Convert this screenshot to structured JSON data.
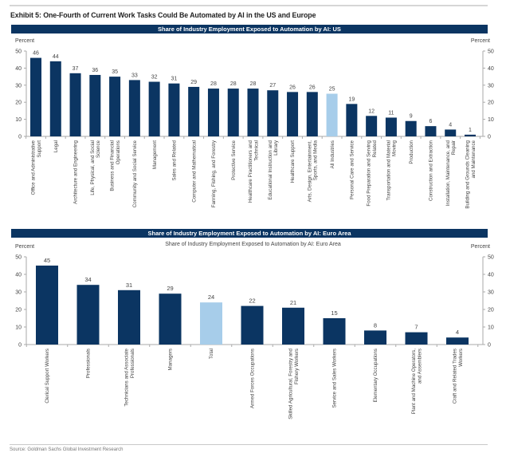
{
  "exhibit_title": "Exhibit 5: One-Fourth of Current Work Tasks Could Be Automated by AI in the US and Europe",
  "source": "Source: Goldman Sachs Global Investment Research",
  "colors": {
    "bar": "#0b3562",
    "highlight": "#a7cdea",
    "banner": "#0b3562",
    "axis": "#aaaaaa"
  },
  "chart_data": [
    {
      "type": "bar",
      "title": "Share of Industry Employment Exposed to Automation by AI: US",
      "ylabel_left": "Percent",
      "ylabel_right": "Percent",
      "ylim": [
        0,
        50
      ],
      "yticks": [
        0,
        10,
        20,
        30,
        40,
        50
      ],
      "grid": false,
      "highlight_category": "All Industries",
      "categories": [
        "Office and Administrative Support",
        "Legal",
        "Architecture and Engineering",
        "Life, Physical, and Social Science",
        "Business and Financial Operations",
        "Community and Social Service",
        "Management",
        "Sales and Related",
        "Computer and Mathematical",
        "Farming, Fishing, and Forestry",
        "Protective Service",
        "Healthcare Practitioners and Technical",
        "Educational Instruction and Library",
        "Healthcare Support",
        "Arts, Design, Entertainment, Sports, and Media",
        "All Industries",
        "Personal Care and Service",
        "Food Preparation and Serving Related",
        "Transportation and Material Moving",
        "Production",
        "Construction and Extraction",
        "Installation, Maintenance, and Repair",
        "Building and Grounds Cleaning and Maintenance"
      ],
      "label_lines": [
        [
          "Office and Administrative",
          "Support"
        ],
        [
          "Legal"
        ],
        [
          "Architecture and Engineering"
        ],
        [
          "Life, Physical, and Social",
          "Science"
        ],
        [
          "Business and Financial",
          "Operations"
        ],
        [
          "Community and Social Service"
        ],
        [
          "Management"
        ],
        [
          "Sales and Related"
        ],
        [
          "Computer and Mathematical"
        ],
        [
          "Farming, Fishing, and Forestry"
        ],
        [
          "Protective Service"
        ],
        [
          "Healthcare Practitioners and",
          "Technical"
        ],
        [
          "Educational Instruction and",
          "Library"
        ],
        [
          "Healthcare Support"
        ],
        [
          "Arts, Design, Entertainment,",
          "Sports, and Media"
        ],
        [
          "All Industries"
        ],
        [
          "Personal Care and Service"
        ],
        [
          "Food Preparation and Serving",
          "Related"
        ],
        [
          "Transportation and Material",
          "Moving"
        ],
        [
          "Production"
        ],
        [
          "Construction and Extraction"
        ],
        [
          "Installation, Maintenance, and",
          "Repair"
        ],
        [
          "Building and Grounds Cleaning",
          "and Maintenance"
        ]
      ],
      "values": [
        46,
        44,
        37,
        36,
        35,
        33,
        32,
        31,
        29,
        28,
        28,
        28,
        27,
        26,
        26,
        25,
        19,
        12,
        11,
        9,
        6,
        4,
        1
      ]
    },
    {
      "type": "bar",
      "title": "Share of Industry Employment Exposed to Automation by AI: Euro Area",
      "subtitle": "Share of Industry Employment Exposed to Automation by AI: Euro Area",
      "ylabel_left": "Percent",
      "ylabel_right": "Percent",
      "ylim": [
        0,
        50
      ],
      "yticks": [
        0,
        10,
        20,
        30,
        40,
        50
      ],
      "grid": false,
      "highlight_category": "Total",
      "categories": [
        "Clerical Support Workers",
        "Professionals",
        "Technicians and Associate Professionals",
        "Managers",
        "Total",
        "Armed Forces Occupations",
        "Skilled Agricultural, Forestry and Fishery Workers",
        "Service and Sales Workers",
        "Elementary Occupations",
        "Plant and Machine Operators, and Assemblers",
        "Craft and Related Trades Workers"
      ],
      "label_lines": [
        [
          "Clerical Support Workers"
        ],
        [
          "Professionals"
        ],
        [
          "Technicians and Associate",
          "Professionals"
        ],
        [
          "Managers"
        ],
        [
          "Total"
        ],
        [
          "Armed Forces Occupations"
        ],
        [
          "Skilled Agricultural, Forestry and",
          "Fishery Workers"
        ],
        [
          "Service and Sales Workers"
        ],
        [
          "Elementary Occupations"
        ],
        [
          "Plant and Machine Operators,",
          "and Assemblers"
        ],
        [
          "Craft and Related Trades",
          "Workers"
        ]
      ],
      "values": [
        45,
        34,
        31,
        29,
        24,
        22,
        21,
        15,
        8,
        7,
        4
      ]
    }
  ]
}
